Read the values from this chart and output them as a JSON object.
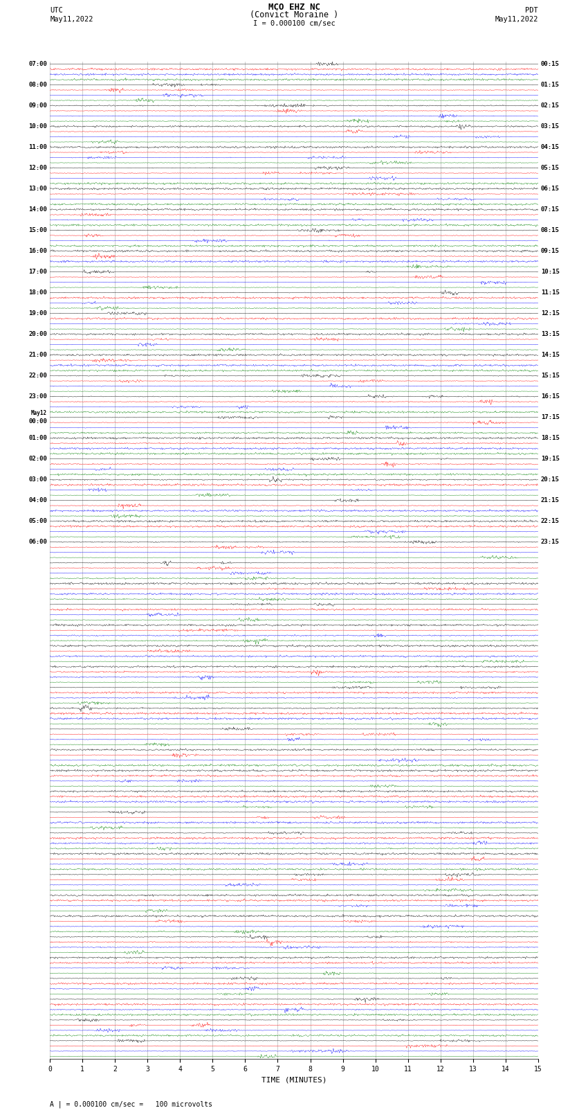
{
  "title_line1": "MCO EHZ NC",
  "title_line2": "(Convict Moraine )",
  "scale_label": "I = 0.000100 cm/sec",
  "footer_label": "A | = 0.000100 cm/sec =   100 microvolts",
  "xlabel": "TIME (MINUTES)",
  "num_rows": 48,
  "traces_per_row": 4,
  "fig_width": 8.5,
  "fig_height": 16.13,
  "bg_color": "white",
  "trace_color_cycle": [
    "black",
    "red",
    "blue",
    "green"
  ],
  "left_times": [
    "07:00",
    "",
    "",
    "",
    "08:00",
    "",
    "",
    "",
    "09:00",
    "",
    "",
    "",
    "10:00",
    "",
    "",
    "",
    "11:00",
    "",
    "",
    "",
    "12:00",
    "",
    "",
    "",
    "13:00",
    "",
    "",
    "",
    "14:00",
    "",
    "",
    "",
    "15:00",
    "",
    "",
    "",
    "16:00",
    "",
    "",
    "",
    "17:00",
    "",
    "",
    "",
    "18:00",
    "",
    "",
    "",
    "19:00",
    "",
    "",
    "",
    "20:00",
    "",
    "",
    "",
    "21:00",
    "",
    "",
    "",
    "22:00",
    "",
    "",
    "",
    "23:00",
    "",
    "",
    "",
    "May12\n00:00",
    "",
    "",
    "",
    "01:00",
    "",
    "",
    "",
    "02:00",
    "",
    "",
    "",
    "03:00",
    "",
    "",
    "",
    "04:00",
    "",
    "",
    "",
    "05:00",
    "",
    "",
    "",
    "06:00",
    "",
    ""
  ],
  "right_times": [
    "00:15",
    "",
    "",
    "",
    "01:15",
    "",
    "",
    "",
    "02:15",
    "",
    "",
    "",
    "03:15",
    "",
    "",
    "",
    "04:15",
    "",
    "",
    "",
    "05:15",
    "",
    "",
    "",
    "06:15",
    "",
    "",
    "",
    "07:15",
    "",
    "",
    "",
    "08:15",
    "",
    "",
    "",
    "09:15",
    "",
    "",
    "",
    "10:15",
    "",
    "",
    "",
    "11:15",
    "",
    "",
    "",
    "12:15",
    "",
    "",
    "",
    "13:15",
    "",
    "",
    "",
    "14:15",
    "",
    "",
    "",
    "15:15",
    "",
    "",
    "",
    "16:15",
    "",
    "",
    "",
    "17:15",
    "",
    "",
    "",
    "18:15",
    "",
    "",
    "",
    "19:15",
    "",
    "",
    "",
    "20:15",
    "",
    "",
    "",
    "21:15",
    "",
    "",
    "",
    "22:15",
    "",
    "",
    "",
    "23:15",
    "",
    ""
  ]
}
